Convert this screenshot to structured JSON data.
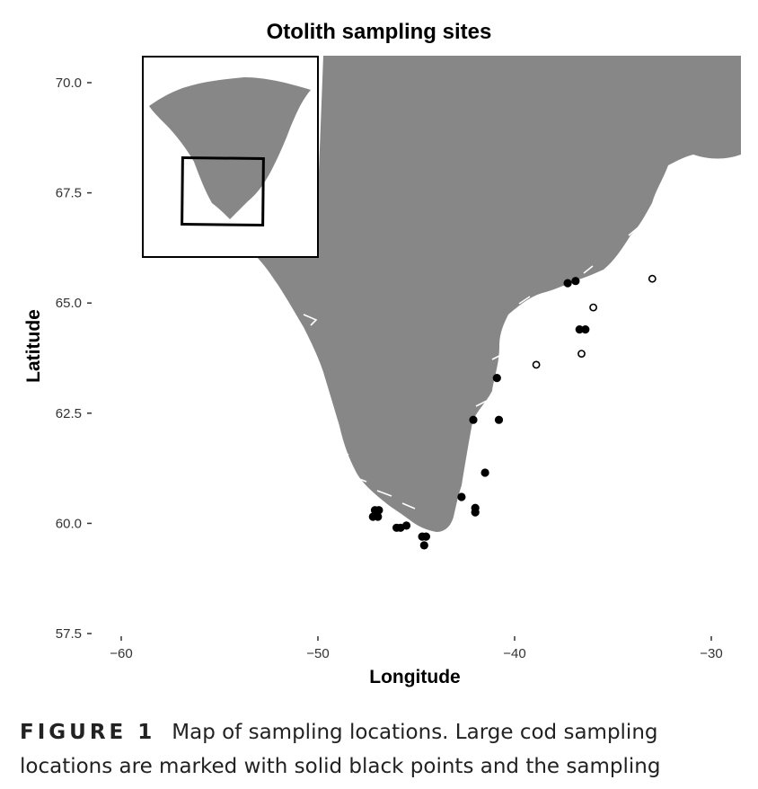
{
  "chart_data": {
    "type": "scatter",
    "title": "Otolith sampling sites",
    "xlabel": "Longitude",
    "ylabel": "Latitude",
    "xlim": [
      -61,
      -28
    ],
    "ylim": [
      57.5,
      70.5
    ],
    "x_ticks": [
      -60,
      -50,
      -40,
      -30
    ],
    "x_tick_labels": [
      "−60",
      "−50",
      "−40",
      "−30"
    ],
    "y_ticks": [
      57.5,
      60.0,
      62.5,
      65.0,
      67.5,
      70.0
    ],
    "y_tick_labels": [
      "57.5",
      "60.0",
      "62.5",
      "65.0",
      "67.5",
      "70.0"
    ],
    "series": [
      {
        "marker": "filled",
        "color": "#000000",
        "points": [
          {
            "x": -47.1,
            "y": 60.3
          },
          {
            "x": -46.9,
            "y": 60.3
          },
          {
            "x": -47.2,
            "y": 60.15
          },
          {
            "x": -46.95,
            "y": 60.15
          },
          {
            "x": -46.0,
            "y": 59.9
          },
          {
            "x": -45.8,
            "y": 59.9
          },
          {
            "x": -45.5,
            "y": 59.95
          },
          {
            "x": -44.7,
            "y": 59.7
          },
          {
            "x": -44.5,
            "y": 59.7
          },
          {
            "x": -44.6,
            "y": 59.5
          },
          {
            "x": -42.7,
            "y": 60.6
          },
          {
            "x": -42.0,
            "y": 60.35
          },
          {
            "x": -42.0,
            "y": 60.25
          },
          {
            "x": -41.5,
            "y": 61.15
          },
          {
            "x": -42.1,
            "y": 62.35
          },
          {
            "x": -40.8,
            "y": 62.35
          },
          {
            "x": -40.9,
            "y": 63.3
          },
          {
            "x": -37.3,
            "y": 65.45
          },
          {
            "x": -36.9,
            "y": 65.5
          },
          {
            "x": -36.7,
            "y": 64.4
          },
          {
            "x": -36.4,
            "y": 64.4
          }
        ]
      },
      {
        "marker": "hollow",
        "color": "#000000",
        "points": [
          {
            "x": -33.0,
            "y": 65.55
          },
          {
            "x": -36.0,
            "y": 64.9
          },
          {
            "x": -36.6,
            "y": 63.85
          },
          {
            "x": -38.9,
            "y": 63.6
          }
        ]
      }
    ],
    "land_color": "#878787",
    "inset": {
      "location": "top-left",
      "description_box": "study region outline"
    }
  },
  "caption": {
    "label": "FIGURE 1",
    "line1": "Map of sampling locations. Large cod sampling",
    "line2": "locations are marked with solid black points and the sampling"
  }
}
